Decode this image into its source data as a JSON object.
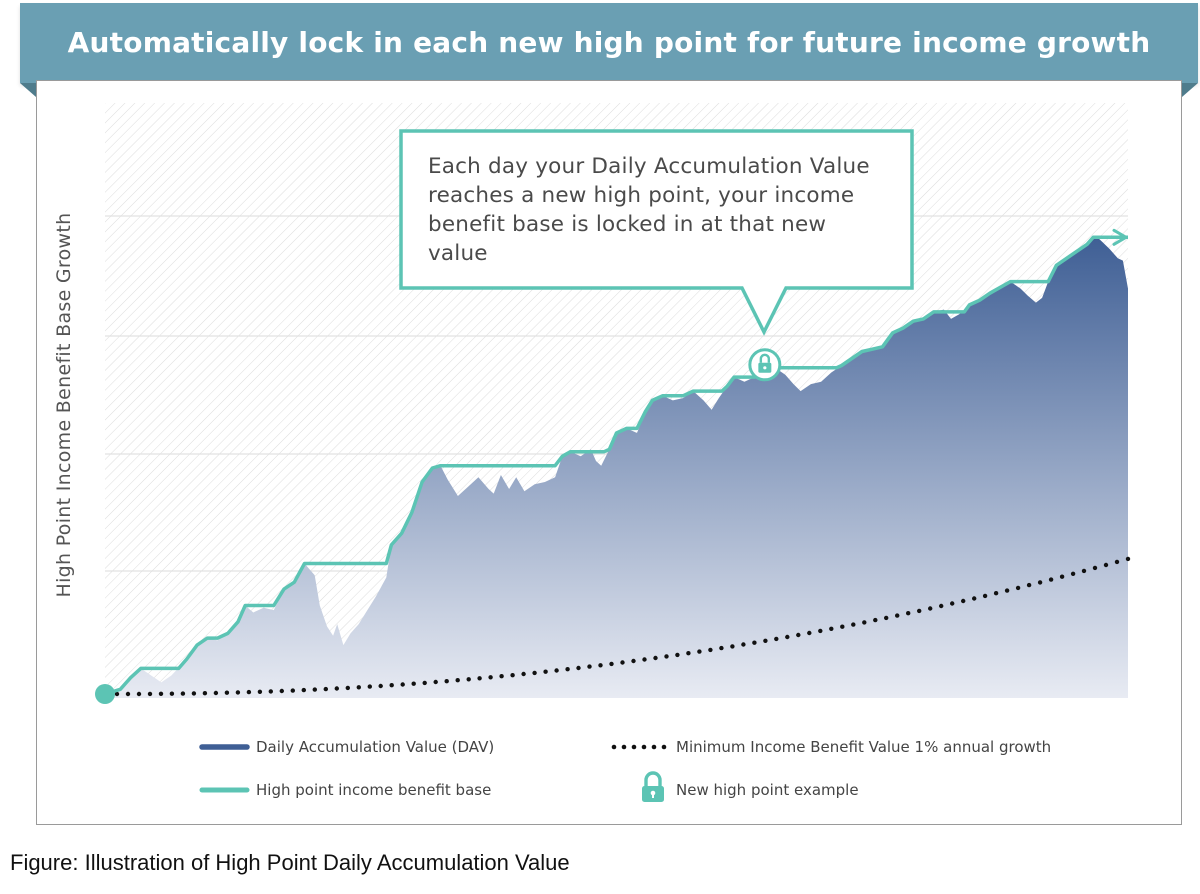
{
  "banner": {
    "title": "Automatically lock in each new high point for future income growth"
  },
  "callout": {
    "text": "Each day your Daily Accumulation Value reaches a new high point, your income benefit base is locked in at that new value"
  },
  "caption": "Figure: Illustration of High Point Daily Accumulation Value",
  "colors": {
    "banner": "#6a9fb3",
    "dav_fill_top": "#3f5f95",
    "dav_fill_bottom": "#e8ebf3",
    "high_point_line": "#5cc4b4",
    "min_value_dots": "#111111"
  },
  "legend": {
    "dav": "Daily Accumulation Value (DAV)",
    "minimum": "Minimum Income Benefit Value 1% annual growth",
    "high_point": "High point income benefit base",
    "lock": "New high point example"
  },
  "chart_data": {
    "type": "area",
    "title": "Automatically lock in each new high point for future income growth",
    "ylabel": "High Point Income Benefit Base Growth",
    "xlabel": "",
    "xlim": [
      0,
      100
    ],
    "ylim": [
      0,
      100
    ],
    "grid": true,
    "legend_position": "bottom",
    "series": [
      {
        "name": "Daily Accumulation Value (DAV)",
        "kind": "area",
        "points": [
          [
            0,
            0
          ],
          [
            1.5,
            1
          ],
          [
            2.5,
            3.5
          ],
          [
            3.5,
            5.5
          ],
          [
            4.5,
            4
          ],
          [
            5.5,
            2.5
          ],
          [
            6.5,
            4
          ],
          [
            8,
            7.5
          ],
          [
            9,
            10.5
          ],
          [
            10,
            12
          ],
          [
            11,
            11.5
          ],
          [
            12,
            13
          ],
          [
            13,
            15.5
          ],
          [
            13.7,
            19
          ],
          [
            14.5,
            17.5
          ],
          [
            15.5,
            18.5
          ],
          [
            16.5,
            18
          ],
          [
            17.5,
            22.5
          ],
          [
            18.5,
            24
          ],
          [
            19.5,
            28
          ],
          [
            20.5,
            25.5
          ],
          [
            21,
            19
          ],
          [
            21.7,
            14.5
          ],
          [
            22.3,
            12.5
          ],
          [
            22.7,
            15
          ],
          [
            23.3,
            10.5
          ],
          [
            24,
            13
          ],
          [
            24.8,
            15
          ],
          [
            25.5,
            17.5
          ],
          [
            26.5,
            21
          ],
          [
            27.5,
            25
          ],
          [
            28,
            32
          ],
          [
            29,
            34.5
          ],
          [
            30,
            39
          ],
          [
            31,
            45.5
          ],
          [
            32,
            48.5
          ],
          [
            32.8,
            49
          ],
          [
            33.5,
            46
          ],
          [
            34.5,
            42.5
          ],
          [
            35.5,
            44.5
          ],
          [
            36.5,
            46.5
          ],
          [
            37.5,
            44
          ],
          [
            38,
            43
          ],
          [
            38.7,
            47
          ],
          [
            39.5,
            44
          ],
          [
            40.2,
            46.5
          ],
          [
            41,
            43.5
          ],
          [
            42,
            45
          ],
          [
            43,
            45.5
          ],
          [
            44,
            46.5
          ],
          [
            44.7,
            51
          ],
          [
            45.5,
            52
          ],
          [
            46.5,
            51
          ],
          [
            47.5,
            52.5
          ],
          [
            48,
            50
          ],
          [
            48.5,
            49
          ],
          [
            49.3,
            52.5
          ],
          [
            50,
            56
          ],
          [
            51,
            57
          ],
          [
            52,
            56
          ],
          [
            52.8,
            60.5
          ],
          [
            53.5,
            63
          ],
          [
            54.5,
            64
          ],
          [
            55.5,
            63
          ],
          [
            56.5,
            63.5
          ],
          [
            57.5,
            65
          ],
          [
            58.5,
            63
          ],
          [
            59.3,
            61
          ],
          [
            60,
            63.5
          ],
          [
            60.8,
            66
          ],
          [
            61.5,
            68
          ],
          [
            62.5,
            67
          ],
          [
            63.5,
            68
          ],
          [
            64.5,
            69.5
          ],
          [
            65.5,
            70
          ],
          [
            66.5,
            68.5
          ],
          [
            67.3,
            66.5
          ],
          [
            68,
            65
          ],
          [
            69,
            66.5
          ],
          [
            70,
            67
          ],
          [
            71,
            69
          ],
          [
            72,
            70.5
          ],
          [
            73,
            72
          ],
          [
            74,
            73.5
          ],
          [
            75,
            74
          ],
          [
            76,
            74.5
          ],
          [
            77,
            77.5
          ],
          [
            78,
            78.5
          ],
          [
            79,
            80
          ],
          [
            80,
            80.5
          ],
          [
            81,
            82
          ],
          [
            82,
            82.5
          ],
          [
            82.7,
            80.5
          ],
          [
            83.5,
            81.5
          ],
          [
            84.5,
            83.5
          ],
          [
            85.5,
            84.5
          ],
          [
            86.5,
            86
          ],
          [
            87.5,
            87
          ],
          [
            88.5,
            88.5
          ],
          [
            89.5,
            87
          ],
          [
            90.2,
            85.5
          ],
          [
            91,
            84
          ],
          [
            91.6,
            85
          ],
          [
            92.2,
            88.5
          ],
          [
            93,
            92
          ],
          [
            94,
            93.5
          ],
          [
            95,
            95
          ],
          [
            96,
            96.5
          ],
          [
            96.6,
            98
          ],
          [
            97,
            98
          ],
          [
            97.5,
            97
          ],
          [
            98.2,
            95.5
          ],
          [
            99,
            93.5
          ],
          [
            99.5,
            93
          ],
          [
            100,
            87
          ]
        ]
      },
      {
        "name": "High point income benefit base",
        "kind": "step-line",
        "points": [
          [
            0,
            0
          ],
          [
            1.5,
            1
          ],
          [
            2.5,
            3.5
          ],
          [
            3.5,
            5.5
          ],
          [
            7.2,
            5.5
          ],
          [
            8,
            7.5
          ],
          [
            9,
            10.5
          ],
          [
            10,
            12
          ],
          [
            11,
            12
          ],
          [
            12,
            13
          ],
          [
            13,
            15.5
          ],
          [
            13.7,
            19
          ],
          [
            16.5,
            19
          ],
          [
            17.5,
            22.5
          ],
          [
            18.5,
            24
          ],
          [
            19.5,
            28
          ],
          [
            27.5,
            28
          ],
          [
            28,
            32
          ],
          [
            29,
            34.5
          ],
          [
            30,
            39
          ],
          [
            31,
            45.5
          ],
          [
            32,
            48.5
          ],
          [
            32.8,
            49
          ],
          [
            44,
            49
          ],
          [
            44.7,
            51
          ],
          [
            45.5,
            52
          ],
          [
            48.8,
            52
          ],
          [
            49.3,
            52.5
          ],
          [
            50,
            56
          ],
          [
            51,
            57
          ],
          [
            52,
            57
          ],
          [
            52.8,
            60.5
          ],
          [
            53.5,
            63
          ],
          [
            54.5,
            64
          ],
          [
            56.5,
            64
          ],
          [
            57.5,
            65
          ],
          [
            60.3,
            65
          ],
          [
            60.8,
            66
          ],
          [
            61.5,
            68
          ],
          [
            62.5,
            68
          ],
          [
            63.5,
            68
          ],
          [
            64.5,
            69.5
          ],
          [
            65.5,
            70
          ],
          [
            71.5,
            70
          ],
          [
            72,
            70.5
          ],
          [
            73,
            72
          ],
          [
            74,
            73.5
          ],
          [
            75,
            74
          ],
          [
            76,
            74.5
          ],
          [
            77,
            77.5
          ],
          [
            78,
            78.5
          ],
          [
            79,
            80
          ],
          [
            80,
            80.5
          ],
          [
            81,
            82
          ],
          [
            84,
            82
          ],
          [
            84.5,
            83.5
          ],
          [
            85.5,
            84.5
          ],
          [
            86.5,
            86
          ],
          [
            88.5,
            88.5
          ],
          [
            91.8,
            88.5
          ],
          [
            92.2,
            88.5
          ],
          [
            93,
            92
          ],
          [
            94,
            93.5
          ],
          [
            95,
            95
          ],
          [
            96,
            96.5
          ],
          [
            96.6,
            98
          ],
          [
            100,
            98
          ]
        ]
      },
      {
        "name": "Minimum Income Benefit Value 1% annual growth",
        "kind": "dotted-curve",
        "growth_exponent": 2.1,
        "end_value": 29
      }
    ],
    "annotations": [
      {
        "type": "lock",
        "label": "New high point example",
        "x": 64.5,
        "y": 70
      }
    ]
  }
}
